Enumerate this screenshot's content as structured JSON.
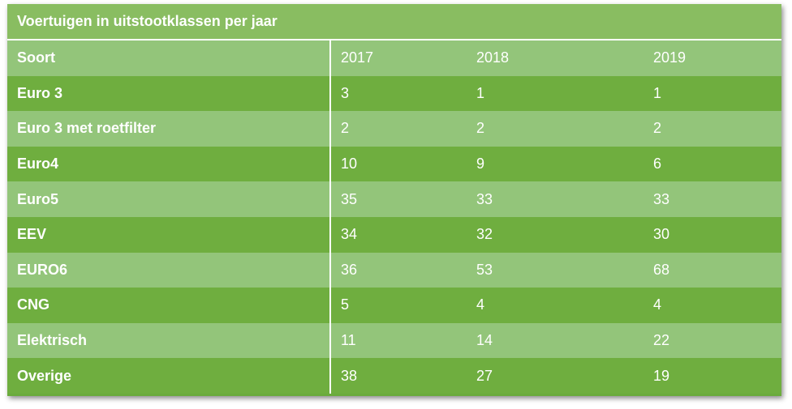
{
  "table": {
    "title": "Voertuigen in uitstootklassen per jaar",
    "headers": [
      "Soort",
      "2017",
      "2018",
      "2019"
    ],
    "rows": [
      {
        "label": "Euro 3",
        "values": [
          "3",
          "1",
          "1"
        ]
      },
      {
        "label": "Euro 3 met roetfilter",
        "values": [
          "2",
          "2",
          "2"
        ]
      },
      {
        "label": "Euro4",
        "values": [
          "10",
          "9",
          "6"
        ]
      },
      {
        "label": "Euro5",
        "values": [
          "35",
          "33",
          "33"
        ]
      },
      {
        "label": "EEV",
        "values": [
          "34",
          "32",
          "30"
        ]
      },
      {
        "label": "EURO6",
        "values": [
          "36",
          "53",
          "68"
        ]
      },
      {
        "label": "CNG",
        "values": [
          "5",
          "4",
          "4"
        ]
      },
      {
        "label": "Elektrisch",
        "values": [
          "11",
          "14",
          "22"
        ]
      },
      {
        "label": "Overige",
        "values": [
          "38",
          "27",
          "19"
        ]
      }
    ]
  },
  "colors": {
    "title_bg": "#89bd61",
    "row_light": "#93c57a",
    "row_dark": "#6fae3f",
    "text": "#ffffff"
  }
}
